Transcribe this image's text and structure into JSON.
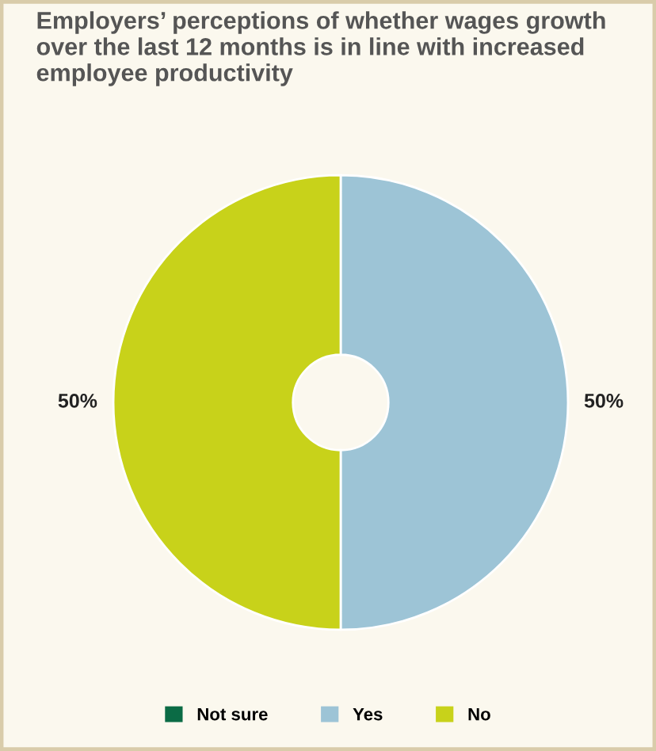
{
  "chart_data": {
    "type": "donut",
    "title": "Employers’ perceptions of whether wages growth over the last 12 months is in line with increased employee productivity",
    "categories": [
      "Not sure",
      "Yes",
      "No"
    ],
    "values": [
      0,
      50,
      50
    ],
    "colors": [
      "#0b6b45",
      "#9dc4d6",
      "#c8d21a"
    ],
    "value_labels": [
      null,
      "50%",
      "50%"
    ],
    "legend": "bottom"
  }
}
